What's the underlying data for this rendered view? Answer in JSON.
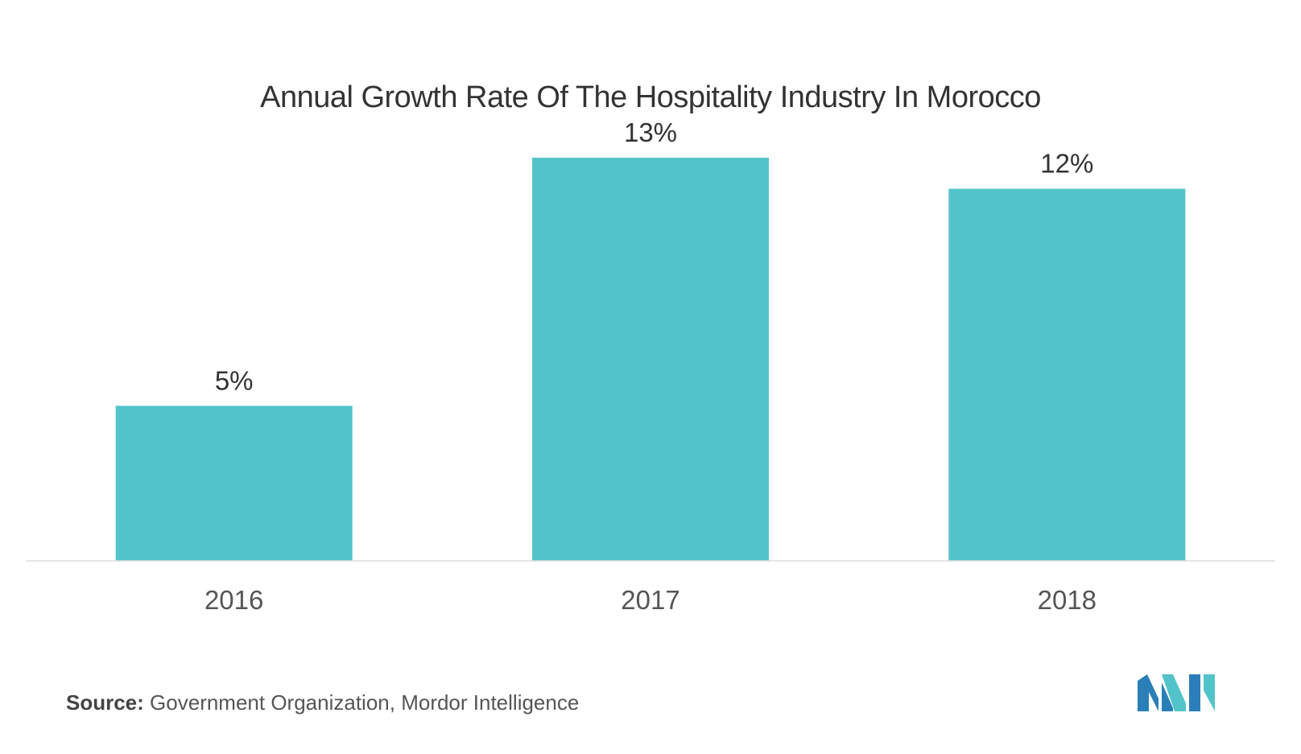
{
  "chart_data": {
    "type": "bar",
    "title": "Annual Growth Rate Of The Hospitality Industry In Morocco",
    "categories": [
      "2016",
      "2017",
      "2018"
    ],
    "values": [
      5,
      13,
      12
    ],
    "data_labels": [
      "5%",
      "13%",
      "12%"
    ],
    "xlabel": "",
    "ylabel": "",
    "ylim": [
      0,
      13
    ],
    "grid": false,
    "legend": "none",
    "bar_color": "#52c4c9"
  },
  "footer": {
    "source_label": "Source:",
    "source_text": "Government Organization, Mordor Intelligence"
  },
  "logo": {
    "name": "mordor-intelligence-logo",
    "colors": [
      "#2b7fb8",
      "#52c4c9"
    ]
  }
}
